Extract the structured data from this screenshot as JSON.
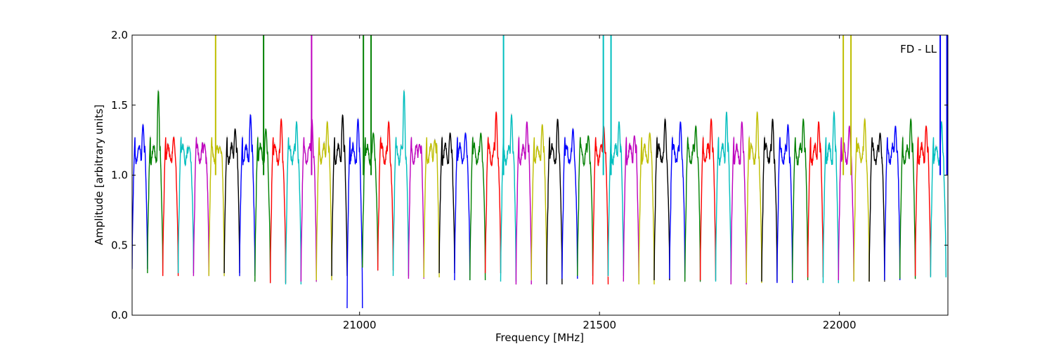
{
  "chart_data": {
    "type": "line",
    "title": "",
    "xlabel": "Frequency [MHz]",
    "ylabel": "Amplitude [arbitrary units]",
    "annotation": "FD - LL",
    "xlim": [
      20526,
      22226
    ],
    "ylim": [
      0.0,
      2.0
    ],
    "x_ticks": [
      21000,
      21500,
      22000
    ],
    "x_tick_labels": [
      "21000",
      "21500",
      "22000"
    ],
    "y_ticks": [
      0.0,
      0.5,
      1.0,
      1.5,
      2.0
    ],
    "y_tick_labels": [
      "0.0",
      "0.5",
      "1.0",
      "1.5",
      "2.0"
    ],
    "grid": false,
    "legend": "none",
    "color_cycle": [
      "#0000ff",
      "#008000",
      "#ff0000",
      "#00bfbf",
      "#bf00bf",
      "#bfbf00",
      "#000000"
    ],
    "background_trace_color": "#bfbfbf",
    "band_width_mhz": 32,
    "band_starts_mhz": [
      20526,
      20558,
      20590,
      20622,
      20654,
      20686,
      20718,
      20750,
      20782,
      20814,
      20846,
      20878,
      20910,
      20942,
      20974,
      21006,
      21038,
      21070,
      21102,
      21134,
      21166,
      21198,
      21230,
      21262,
      21294,
      21326,
      21358,
      21390,
      21422,
      21454,
      21486,
      21518,
      21550,
      21582,
      21614,
      21646,
      21678,
      21710,
      21742,
      21774,
      21806,
      21838,
      21870,
      21902,
      21934,
      21966,
      21998,
      22030,
      22062,
      22094,
      22126,
      22158,
      22190
    ],
    "band_peak_amplitudes": [
      1.36,
      1.6,
      1.27,
      1.2,
      1.22,
      1.2,
      1.33,
      1.43,
      1.33,
      1.4,
      1.38,
      1.4,
      1.38,
      1.43,
      1.4,
      1.3,
      1.38,
      1.6,
      1.22,
      1.25,
      1.3,
      1.3,
      1.3,
      1.45,
      1.43,
      1.38,
      1.36,
      1.4,
      1.33,
      1.28,
      1.35,
      1.38,
      1.28,
      1.3,
      1.4,
      1.38,
      1.35,
      1.4,
      1.45,
      1.38,
      1.45,
      1.4,
      1.36,
      1.4,
      1.38,
      1.45,
      1.35,
      1.4,
      1.3,
      1.35,
      1.4,
      1.35,
      1.38
    ],
    "band_trough_amplitudes": [
      0.33,
      0.3,
      0.28,
      0.3,
      0.28,
      0.28,
      0.3,
      0.28,
      0.24,
      0.23,
      0.22,
      0.24,
      0.25,
      0.28,
      0.05,
      0.34,
      0.32,
      0.28,
      0.26,
      0.27,
      0.3,
      0.25,
      0.25,
      0.3,
      0.24,
      0.22,
      0.25,
      0.22,
      0.26,
      0.28,
      0.22,
      0.28,
      0.24,
      0.22,
      0.25,
      0.26,
      0.24,
      0.25,
      0.24,
      0.22,
      0.23,
      0.24,
      0.23,
      0.25,
      0.27,
      0.23,
      0.25,
      0.24,
      0.24,
      0.25,
      0.26,
      0.28,
      0.27
    ],
    "band_mean_amplitude": 1.15,
    "spikes": [
      {
        "x": 20700,
        "color": "#bfbf00"
      },
      {
        "x": 20800,
        "color": "#008000"
      },
      {
        "x": 20900,
        "color": "#bf00bf"
      },
      {
        "x": 21008,
        "color": "#008000"
      },
      {
        "x": 21024,
        "color": "#008000"
      },
      {
        "x": 21300,
        "color": "#00bfbf"
      },
      {
        "x": 21508,
        "color": "#00bfbf"
      },
      {
        "x": 21524,
        "color": "#00bfbf"
      },
      {
        "x": 22008,
        "color": "#bfbf00"
      },
      {
        "x": 22024,
        "color": "#bfbf00"
      },
      {
        "x": 22210,
        "color": "#0000ff"
      },
      {
        "x": 22224,
        "color": "#0000ff"
      }
    ]
  }
}
